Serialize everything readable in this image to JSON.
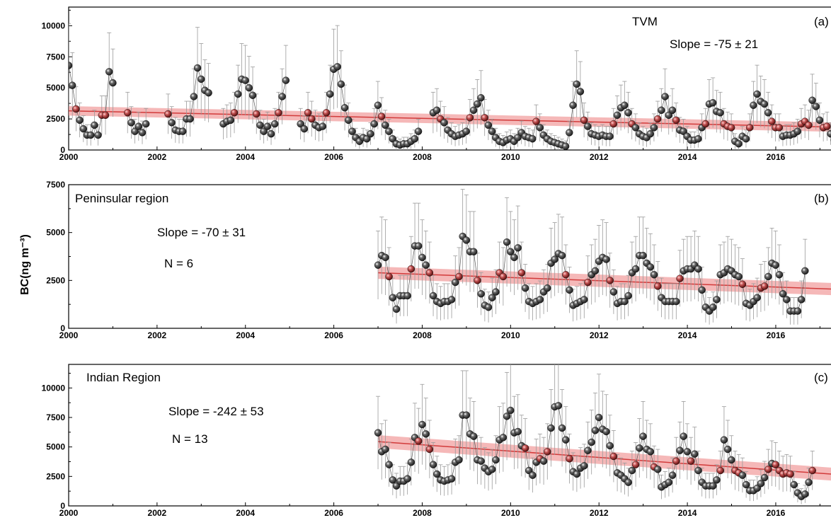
{
  "figure": {
    "ylabel": "BC(ng m⁻³)",
    "colors": {
      "trend_fill": "#f2a0a0",
      "trend_line": "#d23b3b",
      "marker_fill": "#1c1c1c",
      "marker_highlight": "#ffffff",
      "errorbar": "#9a9a9a",
      "series_line": "#555555",
      "axis": "#000000"
    }
  },
  "chart_data": [
    {
      "type": "scatter",
      "panel_label": "(a)",
      "title": "TVM",
      "annotations": {
        "slope": "Slope = -75 ± 21",
        "n": ""
      },
      "xlim": [
        2000,
        2017.25
      ],
      "ylim": [
        0,
        11500
      ],
      "x_ticks": [
        "2000",
        "2002",
        "2004",
        "2006",
        "2008",
        "2010",
        "2012",
        "2014",
        "2016"
      ],
      "y_ticks": [
        "0",
        "2500",
        "5000",
        "7500",
        "10000"
      ],
      "trend": {
        "y_start": 3150,
        "y_end": 1850,
        "x_start": 2000,
        "x_end": 2017.25,
        "band_halfwidth": 380
      },
      "series": [
        {
          "x_start": 2000.0,
          "x_step": 0.0833,
          "values": [
            6800,
            5200,
            3300,
            2400,
            1700,
            1200,
            1200,
            2000,
            1200,
            2800,
            2800,
            6300,
            5400,
            null,
            null,
            null,
            3000,
            2200,
            1500,
            1900,
            1400,
            2100,
            null,
            null,
            null,
            null,
            null,
            2900,
            2200,
            1600,
            1500,
            1500,
            2500,
            2500,
            4300,
            6600,
            5700,
            4800,
            4600,
            null,
            null,
            null,
            2100,
            2300,
            2400,
            3000,
            4500,
            5700,
            5600,
            5000,
            4400,
            2900,
            2000,
            1500,
            1900,
            1300,
            2100,
            3000,
            4300,
            5600,
            null,
            null,
            null,
            2100,
            1700,
            3000,
            2500,
            2000,
            1800,
            1900,
            3000,
            4500,
            6500,
            6700,
            5300,
            3400,
            2400,
            1500,
            1000,
            700,
            1000,
            900,
            1300,
            2100,
            3600,
            2700,
            2000,
            1500,
            900,
            500,
            400,
            500,
            500,
            700,
            900,
            1500,
            null,
            null,
            null,
            3000,
            3200,
            2500,
            2200,
            1600,
            1300,
            1100,
            1200,
            1300,
            1500,
            2600,
            3200,
            3700,
            4200,
            2600,
            2000,
            1500,
            1000,
            700,
            600,
            800,
            900,
            700,
            1000,
            1400,
            1100,
            1000,
            900,
            2300,
            1800,
            1200,
            900,
            700,
            600,
            500,
            400,
            300,
            1400,
            3600,
            5300,
            4700,
            2400,
            1900,
            1300,
            1200,
            1100,
            1200,
            1100,
            1100,
            2100,
            2800,
            3400,
            3600,
            3000,
            2100,
            1800,
            1300,
            1100,
            1000,
            1300,
            1800,
            2500,
            3200,
            4300,
            2800,
            3200,
            2400,
            1600,
            1500,
            1100,
            800,
            800,
            900,
            1800,
            2100,
            3700,
            3800,
            3100,
            3000,
            2100,
            1900,
            1800,
            700,
            500,
            1100,
            900,
            1800,
            3600,
            4500,
            3900,
            3700,
            3000,
            2300,
            1800,
            1800,
            1100,
            1200,
            1200,
            1300,
            1500,
            2100,
            2300,
            2000,
            4000,
            3500,
            2400,
            1800,
            1900,
            1300,
            800,
            900,
            1300,
            1700,
            2200,
            4200
          ]
        }
      ]
    },
    {
      "type": "scatter",
      "panel_label": "(b)",
      "title": "Peninsular region",
      "annotations": {
        "slope": "Slope = -70 ± 31",
        "n": "N = 6"
      },
      "xlim": [
        2000,
        2017.25
      ],
      "ylim": [
        0,
        7500
      ],
      "x_ticks": [
        "2000",
        "2002",
        "2004",
        "2006",
        "2008",
        "2010",
        "2012",
        "2014",
        "2016"
      ],
      "y_ticks": [
        "0",
        "2500",
        "5000",
        "7500"
      ],
      "trend": {
        "y_start": 2900,
        "y_end": 2050,
        "x_start": 2007.0,
        "x_end": 2017.25,
        "band_halfwidth": 320
      },
      "series": [
        {
          "x_start": 2007.0,
          "x_step": 0.0833,
          "values": [
            3300,
            3800,
            3700,
            2700,
            1600,
            1000,
            1700,
            1700,
            1700,
            3100,
            4300,
            4300,
            3700,
            3300,
            2900,
            1700,
            1400,
            1300,
            1400,
            1400,
            1500,
            2400,
            2700,
            4800,
            4600,
            4000,
            4000,
            2500,
            1800,
            1200,
            1100,
            1600,
            1900,
            2900,
            2700,
            4500,
            4000,
            3700,
            4200,
            2900,
            2100,
            1400,
            1300,
            1400,
            1500,
            1900,
            2100,
            3400,
            3600,
            3900,
            3800,
            2800,
            2000,
            1200,
            1300,
            1400,
            1500,
            2400,
            2800,
            3000,
            3500,
            3700,
            3600,
            2500,
            1900,
            1300,
            1400,
            1400,
            1700,
            2900,
            3100,
            3800,
            3800,
            3400,
            3200,
            2800,
            2200,
            1600,
            1400,
            1400,
            1400,
            1400,
            2600,
            3000,
            3100,
            3100,
            3300,
            3100,
            2000,
            1100,
            900,
            1100,
            1500,
            2800,
            2900,
            3100,
            3000,
            2800,
            2700,
            2300,
            1300,
            1200,
            1400,
            1600,
            2100,
            2200,
            2700,
            3400,
            3300,
            2800,
            1800,
            1500,
            900,
            900,
            900,
            1500,
            3000
          ]
        }
      ]
    },
    {
      "type": "scatter",
      "panel_label": "(c)",
      "title": "Indian Region",
      "annotations": {
        "slope": "Slope = -242 ± 53",
        "n": "N = 13"
      },
      "xlim": [
        2000,
        2017.25
      ],
      "ylim": [
        0,
        12000
      ],
      "x_ticks": [
        "2000",
        "2002",
        "2004",
        "2006",
        "2008",
        "2010",
        "2012",
        "2014",
        "2016"
      ],
      "y_ticks": [
        "0",
        "2500",
        "5000",
        "7500",
        "10000"
      ],
      "trend": {
        "y_start": 5450,
        "y_end": 2700,
        "x_start": 2007.0,
        "x_end": 2017.25,
        "band_halfwidth": 550
      },
      "series": [
        {
          "x_start": 2007.0,
          "x_step": 0.0833,
          "values": [
            6200,
            4600,
            4800,
            3500,
            2200,
            1700,
            2100,
            2100,
            2300,
            3700,
            5800,
            5500,
            6900,
            6100,
            4800,
            3500,
            2700,
            2200,
            2100,
            2200,
            2300,
            3700,
            3900,
            7700,
            7700,
            6100,
            5900,
            3900,
            3800,
            3200,
            2900,
            3100,
            3900,
            5600,
            5800,
            7600,
            8100,
            6200,
            6300,
            5100,
            4900,
            3000,
            2600,
            3700,
            4000,
            3800,
            4600,
            6600,
            8400,
            8500,
            6600,
            5600,
            4000,
            2900,
            2700,
            3200,
            3400,
            4700,
            5400,
            6400,
            7500,
            6500,
            6300,
            5100,
            4200,
            2800,
            2600,
            2300,
            2000,
            3000,
            3500,
            4900,
            5900,
            4800,
            4600,
            3300,
            3100,
            1600,
            1800,
            2000,
            2600,
            3800,
            4700,
            5900,
            4600,
            3800,
            4400,
            3000,
            2000,
            1700,
            1700,
            1700,
            2200,
            3000,
            5600,
            4800,
            3900,
            3000,
            2800,
            2600,
            1800,
            1300,
            1300,
            1500,
            1900,
            2400,
            3100,
            3600,
            3500,
            3000,
            2700,
            2800,
            2700,
            1800,
            1100,
            800,
            1000,
            2000,
            3000
          ]
        }
      ]
    }
  ]
}
